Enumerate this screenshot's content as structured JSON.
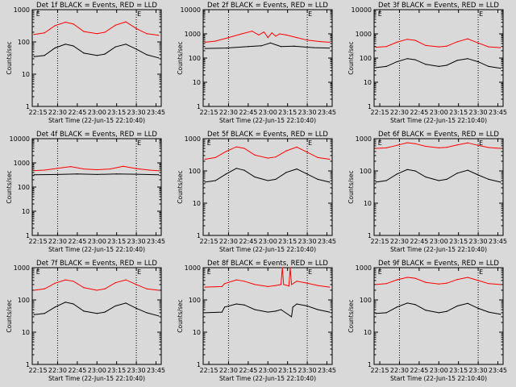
{
  "chart_data": [
    {
      "type": "line",
      "title": "Det 1f BLACK = Events, RED = LLD",
      "xlabel": "Start Time (22-Jun-15 22:10:40)",
      "ylabel": "Counts/sec",
      "yscale": "log",
      "ylim": [
        1,
        1000
      ],
      "ytick_labels": [
        "1",
        "10",
        "100",
        "1000"
      ],
      "xtick_labels": [
        "22:15",
        "22:30",
        "22:45",
        "23:00",
        "23:15",
        "23:30",
        "23:45"
      ],
      "xlim": [
        "22:10:40",
        "23:49"
      ],
      "vlines": [
        "22:30",
        "23:30"
      ],
      "markers": [
        {
          "time": "22:13",
          "label": "E"
        },
        {
          "time": "23:30",
          "label": "E"
        }
      ],
      "series": [
        {
          "color": "#000000",
          "x": [
            "22:12",
            "22:20",
            "22:28",
            "22:36",
            "22:42",
            "22:50",
            "23:00",
            "23:06",
            "23:14",
            "23:22",
            "23:30",
            "23:38",
            "23:47"
          ],
          "y": [
            35,
            38,
            65,
            85,
            75,
            45,
            38,
            42,
            70,
            85,
            60,
            40,
            32
          ]
        },
        {
          "color": "#ff0000",
          "x": [
            "22:12",
            "22:20",
            "22:28",
            "22:36",
            "22:42",
            "22:50",
            "23:00",
            "23:06",
            "23:14",
            "23:22",
            "23:30",
            "23:38",
            "23:47"
          ],
          "y": [
            170,
            190,
            320,
            410,
            360,
            210,
            180,
            200,
            330,
            420,
            260,
            180,
            160
          ]
        }
      ]
    },
    {
      "type": "line",
      "title": "Det 2f BLACK = Events, RED = LLD",
      "xlabel": "Start Time (22-Jun-15 22:10:40)",
      "ylabel": "Counts/sec",
      "yscale": "log",
      "ylim": [
        1,
        10000
      ],
      "ytick_labels": [
        "1",
        "10",
        "100",
        "1000",
        "10000"
      ],
      "xtick_labels": [
        "22:15",
        "22:30",
        "22:45",
        "23:00",
        "23:15",
        "23:30",
        "23:45"
      ],
      "xlim": [
        "22:10:40",
        "23:49"
      ],
      "vlines": [
        "22:30",
        "23:30"
      ],
      "markers": [
        {
          "time": "23:30",
          "label": "E"
        }
      ],
      "series": [
        {
          "color": "#000000",
          "x": [
            "22:12",
            "22:28",
            "22:45",
            "22:55",
            "23:02",
            "23:10",
            "23:20",
            "23:35",
            "23:47"
          ],
          "y": [
            250,
            260,
            300,
            320,
            420,
            300,
            310,
            270,
            260
          ]
        },
        {
          "color": "#ff0000",
          "x": [
            "22:12",
            "22:20",
            "22:30",
            "22:40",
            "22:48",
            "22:53",
            "22:57",
            "23:00",
            "23:03",
            "23:06",
            "23:09",
            "23:14",
            "23:22",
            "23:30",
            "23:40",
            "23:47"
          ],
          "y": [
            450,
            500,
            700,
            1000,
            1300,
            900,
            1200,
            700,
            1100,
            800,
            1000,
            900,
            700,
            550,
            480,
            450
          ]
        }
      ]
    },
    {
      "type": "line",
      "title": "Det 3f BLACK = Events, RED = LLD",
      "xlabel": "Start Time (22-Jun-15 22:10:40)",
      "ylabel": "Counts/sec",
      "yscale": "log",
      "ylim": [
        1,
        10000
      ],
      "ytick_labels": [
        "1",
        "10",
        "100",
        "1000",
        "10000"
      ],
      "xtick_labels": [
        "22:15",
        "22:30",
        "22:45",
        "23:00",
        "23:15",
        "23:30",
        "23:45"
      ],
      "xlim": [
        "22:10:40",
        "23:49"
      ],
      "vlines": [
        "22:30",
        "23:30"
      ],
      "markers": [
        {
          "time": "22:13",
          "label": "E"
        },
        {
          "time": "23:30",
          "label": "E"
        }
      ],
      "series": [
        {
          "color": "#000000",
          "x": [
            "22:12",
            "22:20",
            "22:28",
            "22:36",
            "22:42",
            "22:50",
            "23:00",
            "23:06",
            "23:14",
            "23:22",
            "23:30",
            "23:38",
            "23:47"
          ],
          "y": [
            40,
            45,
            70,
            95,
            85,
            55,
            45,
            50,
            80,
            95,
            70,
            45,
            38
          ]
        },
        {
          "color": "#ff0000",
          "x": [
            "22:12",
            "22:20",
            "22:28",
            "22:36",
            "22:42",
            "22:50",
            "23:00",
            "23:06",
            "23:14",
            "23:22",
            "23:30",
            "23:38",
            "23:47"
          ],
          "y": [
            280,
            300,
            450,
            600,
            540,
            330,
            290,
            310,
            470,
            620,
            420,
            290,
            270
          ]
        }
      ]
    },
    {
      "type": "line",
      "title": "Det 4f BLACK = Events, RED = LLD",
      "xlabel": "Start Time (22-Jun-15 22:10:40)",
      "ylabel": "Counts/sec",
      "yscale": "log",
      "ylim": [
        1,
        10000
      ],
      "ytick_labels": [
        "1",
        "10",
        "100",
        "1000",
        "10000"
      ],
      "xtick_labels": [
        "22:15",
        "22:30",
        "22:45",
        "23:00",
        "23:15",
        "23:30",
        "23:45"
      ],
      "xlim": [
        "22:10:40",
        "23:49"
      ],
      "vlines": [
        "22:30",
        "23:30"
      ],
      "markers": [
        {
          "time": "23:30",
          "label": "E"
        }
      ],
      "series": [
        {
          "color": "#000000",
          "x": [
            "22:12",
            "22:30",
            "22:45",
            "23:00",
            "23:15",
            "23:30",
            "23:47"
          ],
          "y": [
            320,
            330,
            350,
            330,
            350,
            340,
            320
          ]
        },
        {
          "color": "#ff0000",
          "x": [
            "22:12",
            "22:20",
            "22:30",
            "22:40",
            "22:50",
            "23:00",
            "23:10",
            "23:20",
            "23:30",
            "23:40",
            "23:47"
          ],
          "y": [
            480,
            500,
            600,
            700,
            560,
            520,
            560,
            720,
            580,
            500,
            470
          ]
        }
      ]
    },
    {
      "type": "line",
      "title": "Det 5f BLACK = Events, RED = LLD",
      "xlabel": "Start Time (22-Jun-15 22:10:40)",
      "ylabel": "Counts/sec",
      "yscale": "log",
      "ylim": [
        1,
        1000
      ],
      "ytick_labels": [
        "1",
        "10",
        "100",
        "1000"
      ],
      "xtick_labels": [
        "22:15",
        "22:30",
        "22:45",
        "23:00",
        "23:15",
        "23:30",
        "23:45"
      ],
      "xlim": [
        "22:10:40",
        "23:49"
      ],
      "vlines": [
        "22:30",
        "23:30"
      ],
      "markers": [
        {
          "time": "22:13",
          "label": "E"
        },
        {
          "time": "23:30",
          "label": "E"
        }
      ],
      "series": [
        {
          "color": "#000000",
          "x": [
            "22:12",
            "22:20",
            "22:28",
            "22:36",
            "22:42",
            "22:50",
            "23:00",
            "23:06",
            "23:14",
            "23:22",
            "23:30",
            "23:38",
            "23:47"
          ],
          "y": [
            45,
            50,
            80,
            120,
            105,
            65,
            50,
            55,
            90,
            115,
            80,
            55,
            45
          ]
        },
        {
          "color": "#ff0000",
          "x": [
            "22:12",
            "22:20",
            "22:28",
            "22:36",
            "22:42",
            "22:50",
            "23:00",
            "23:06",
            "23:14",
            "23:22",
            "23:30",
            "23:38",
            "23:47"
          ],
          "y": [
            230,
            260,
            400,
            560,
            500,
            310,
            250,
            270,
            420,
            550,
            380,
            260,
            230
          ]
        }
      ]
    },
    {
      "type": "line",
      "title": "Det 6f BLACK = Events, RED = LLD",
      "xlabel": "Start Time (22-Jun-15 22:10:40)",
      "ylabel": "Counts/sec",
      "yscale": "log",
      "ylim": [
        1,
        1000
      ],
      "ytick_labels": [
        "1",
        "10",
        "100",
        "1000"
      ],
      "xtick_labels": [
        "22:15",
        "22:30",
        "22:45",
        "23:00",
        "23:15",
        "23:30",
        "23:45"
      ],
      "xlim": [
        "22:10:40",
        "23:49"
      ],
      "vlines": [
        "22:30",
        "23:30"
      ],
      "markers": [
        {
          "time": "22:13",
          "label": "E"
        },
        {
          "time": "23:30",
          "label": "E"
        }
      ],
      "series": [
        {
          "color": "#000000",
          "x": [
            "22:12",
            "22:20",
            "22:28",
            "22:36",
            "22:42",
            "22:50",
            "23:00",
            "23:06",
            "23:14",
            "23:22",
            "23:30",
            "23:38",
            "23:47"
          ],
          "y": [
            45,
            50,
            80,
            110,
            100,
            65,
            50,
            55,
            85,
            105,
            75,
            55,
            45
          ]
        },
        {
          "color": "#ff0000",
          "x": [
            "22:12",
            "22:20",
            "22:28",
            "22:36",
            "22:42",
            "22:50",
            "23:00",
            "23:06",
            "23:14",
            "23:22",
            "23:30",
            "23:38",
            "23:47"
          ],
          "y": [
            500,
            520,
            620,
            750,
            700,
            580,
            520,
            540,
            640,
            740,
            620,
            530,
            500
          ]
        }
      ]
    },
    {
      "type": "line",
      "title": "Det 7f BLACK = Events, RED = LLD",
      "xlabel": "Start Time (22-Jun-15 22:10:40)",
      "ylabel": "Counts/sec",
      "yscale": "log",
      "ylim": [
        1,
        1000
      ],
      "ytick_labels": [
        "1",
        "10",
        "100",
        "1000"
      ],
      "xtick_labels": [
        "22:15",
        "22:30",
        "22:45",
        "23:00",
        "23:15",
        "23:30",
        "23:45"
      ],
      "xlim": [
        "22:10:40",
        "23:49"
      ],
      "vlines": [
        "22:30",
        "23:30"
      ],
      "markers": [
        {
          "time": "22:13",
          "label": "E"
        },
        {
          "time": "23:30",
          "label": "E"
        }
      ],
      "series": [
        {
          "color": "#000000",
          "x": [
            "22:12",
            "22:20",
            "22:28",
            "22:36",
            "22:42",
            "22:50",
            "23:00",
            "23:06",
            "23:14",
            "23:22",
            "23:30",
            "23:38",
            "23:47"
          ],
          "y": [
            35,
            38,
            60,
            85,
            75,
            45,
            38,
            42,
            65,
            80,
            55,
            40,
            32
          ]
        },
        {
          "color": "#ff0000",
          "x": [
            "22:12",
            "22:20",
            "22:28",
            "22:36",
            "22:42",
            "22:50",
            "23:00",
            "23:06",
            "23:14",
            "23:22",
            "23:30",
            "23:38",
            "23:47"
          ],
          "y": [
            200,
            220,
            330,
            420,
            380,
            240,
            200,
            220,
            340,
            420,
            300,
            220,
            200
          ]
        }
      ]
    },
    {
      "type": "line",
      "title": "Det 8f BLACK = Events, RED = LLD",
      "xlabel": "Start Time (22-Jun-15 22:10:40)",
      "ylabel": "Counts/sec",
      "yscale": "log",
      "ylim": [
        1,
        1000
      ],
      "ytick_labels": [
        "1",
        "10",
        "100",
        "1000"
      ],
      "xtick_labels": [
        "22:15",
        "22:30",
        "22:45",
        "23:00",
        "23:15",
        "23:30",
        "23:45"
      ],
      "xlim": [
        "22:10:40",
        "23:49"
      ],
      "vlines": [
        "22:30",
        "23:30"
      ],
      "markers": [
        {
          "time": "22:13",
          "label": "E"
        },
        {
          "time": "23:30",
          "label": "E"
        }
      ],
      "series": [
        {
          "color": "#000000",
          "x": [
            "22:12",
            "22:25",
            "22:27",
            "22:36",
            "22:42",
            "22:50",
            "23:00",
            "23:06",
            "23:10",
            "23:18",
            "23:19",
            "23:22",
            "23:30",
            "23:38",
            "23:47"
          ],
          "y": [
            40,
            42,
            60,
            75,
            70,
            50,
            42,
            45,
            50,
            30,
            60,
            75,
            65,
            50,
            42
          ]
        },
        {
          "color": "#ff0000",
          "x": [
            "22:12",
            "22:25",
            "22:27",
            "22:36",
            "22:42",
            "22:50",
            "23:00",
            "23:06",
            "23:10",
            "23:11",
            "23:12",
            "23:16",
            "23:17",
            "23:18",
            "23:22",
            "23:30",
            "23:38",
            "23:47"
          ],
          "y": [
            250,
            260,
            320,
            420,
            380,
            300,
            260,
            280,
            300,
            1000,
            300,
            270,
            1000,
            300,
            380,
            330,
            280,
            250
          ]
        }
      ]
    },
    {
      "type": "line",
      "title": "Det 9f BLACK = Events, RED = LLD",
      "xlabel": "Start Time (22-Jun-15 22:10:40)",
      "ylabel": "Counts/sec",
      "yscale": "log",
      "ylim": [
        1,
        1000
      ],
      "ytick_labels": [
        "1",
        "10",
        "100",
        "1000"
      ],
      "xtick_labels": [
        "22:15",
        "22:30",
        "22:45",
        "23:00",
        "23:15",
        "23:30",
        "23:45"
      ],
      "xlim": [
        "22:10:40",
        "23:49"
      ],
      "vlines": [
        "22:30",
        "23:30"
      ],
      "markers": [
        {
          "time": "22:13",
          "label": "E"
        },
        {
          "time": "23:30",
          "label": "E"
        }
      ],
      "series": [
        {
          "color": "#000000",
          "x": [
            "22:12",
            "22:20",
            "22:28",
            "22:36",
            "22:42",
            "22:50",
            "23:00",
            "23:06",
            "23:14",
            "23:22",
            "23:30",
            "23:38",
            "23:47"
          ],
          "y": [
            38,
            40,
            60,
            80,
            72,
            48,
            40,
            44,
            65,
            78,
            55,
            42,
            36
          ]
        },
        {
          "color": "#ff0000",
          "x": [
            "22:12",
            "22:20",
            "22:28",
            "22:36",
            "22:42",
            "22:50",
            "23:00",
            "23:06",
            "23:14",
            "23:22",
            "23:30",
            "23:38",
            "23:47"
          ],
          "y": [
            300,
            320,
            420,
            500,
            470,
            350,
            310,
            330,
            430,
            500,
            400,
            320,
            300
          ]
        }
      ]
    }
  ]
}
